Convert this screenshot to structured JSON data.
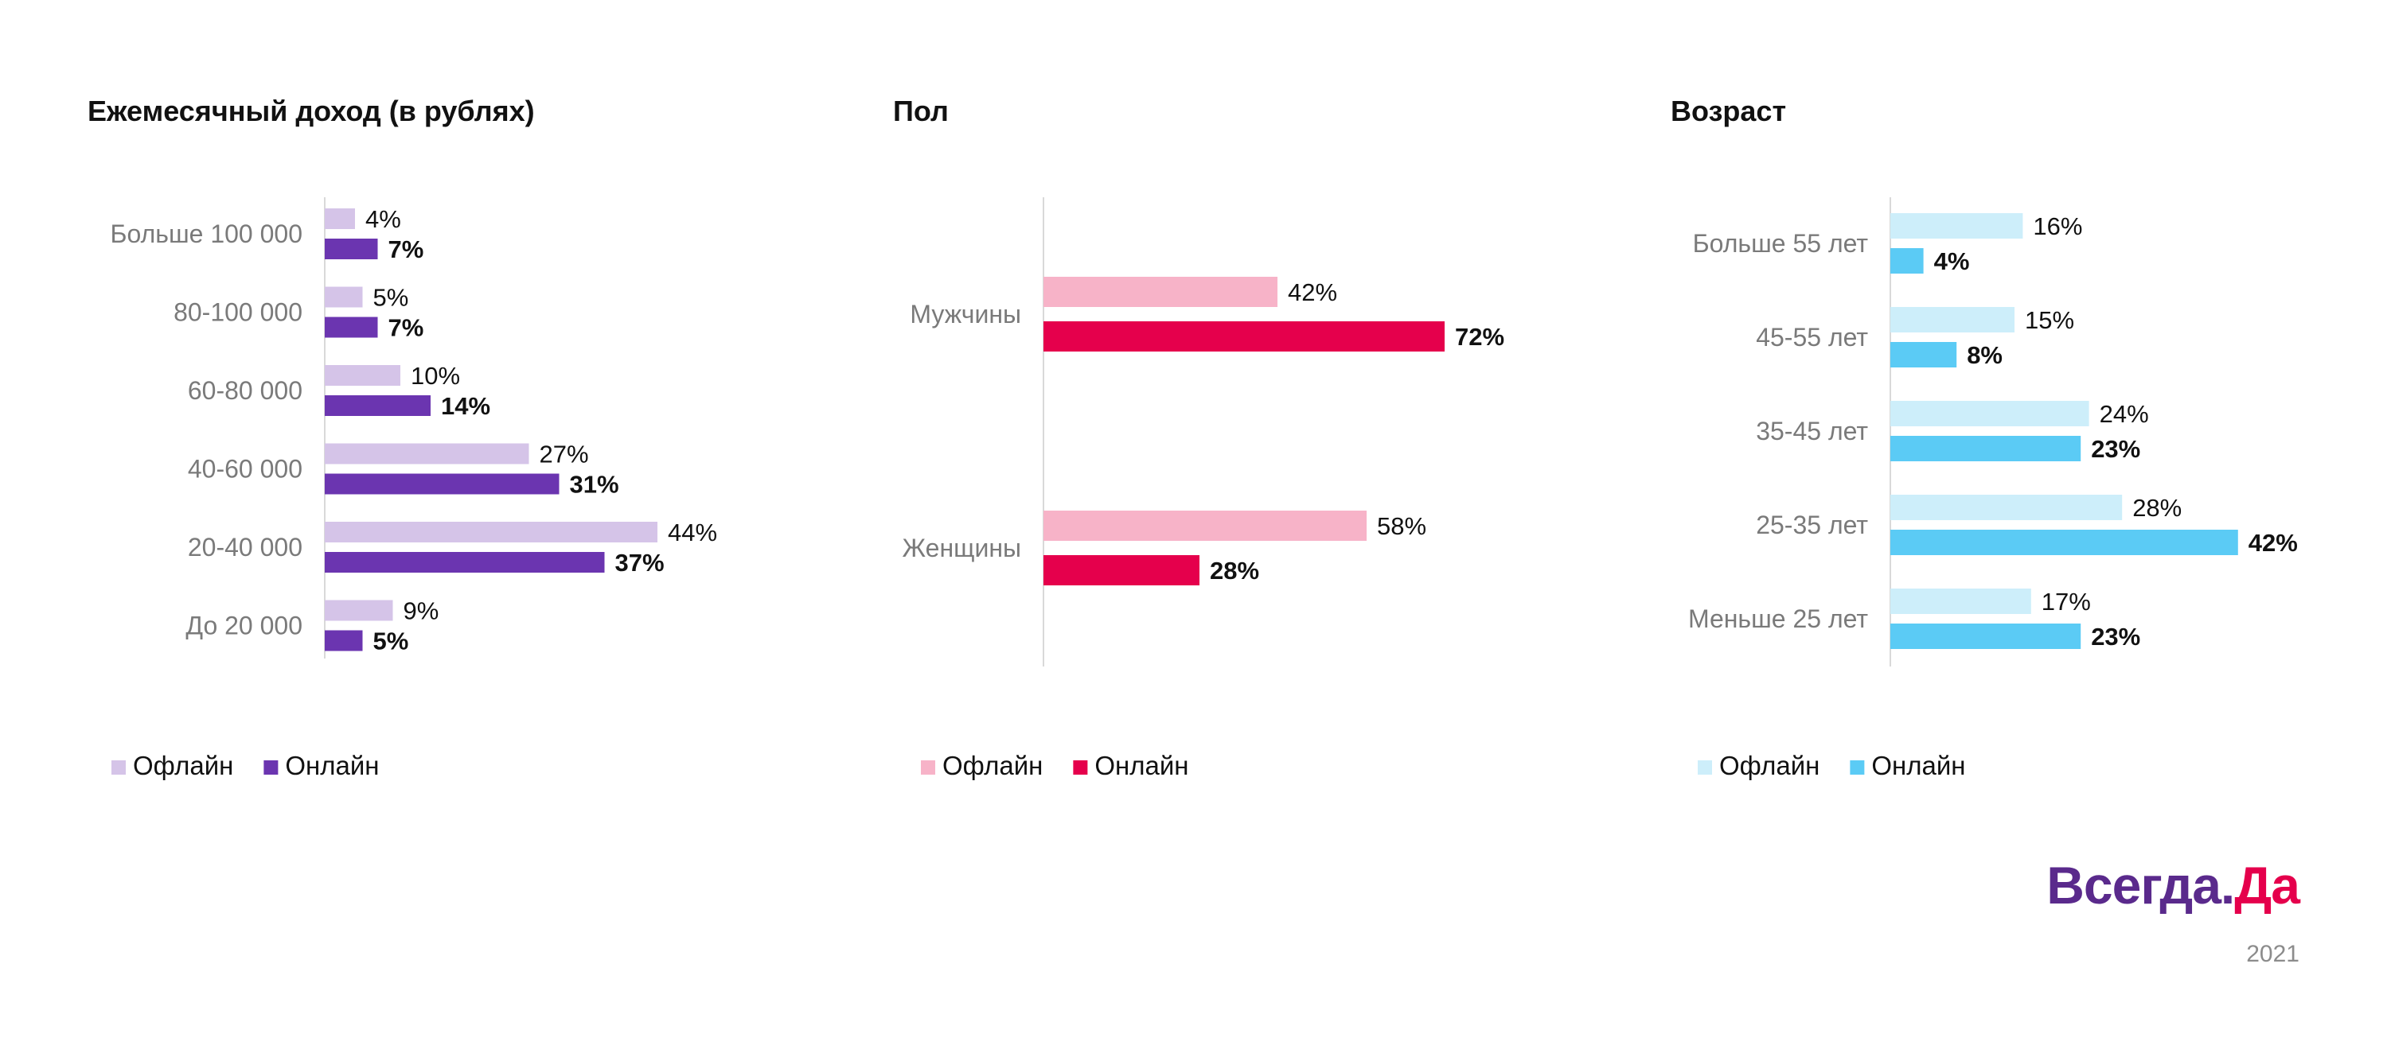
{
  "chart_data": [
    {
      "type": "bar",
      "orientation": "horizontal",
      "title": "Ежемесячный доход (в рублях)",
      "categories": [
        "Больше 100 000",
        "80-100 000",
        "60-80 000",
        "40-60 000",
        "20-40 000",
        "До 20 000"
      ],
      "series": [
        {
          "name": "Офлайн",
          "values": [
            4,
            5,
            10,
            27,
            44,
            9
          ],
          "labels": [
            "4%",
            "5%",
            "10%",
            "27%",
            "44%",
            "9%"
          ],
          "color": "#d5c4e8"
        },
        {
          "name": "Онлайн",
          "values": [
            7,
            7,
            14,
            31,
            37,
            5
          ],
          "labels": [
            "7%",
            "7%",
            "14%",
            "31%",
            "37%",
            "5%"
          ],
          "color": "#6b35b0"
        }
      ],
      "unit": "%",
      "grid": false,
      "legend_position": "bottom-left"
    },
    {
      "type": "bar",
      "orientation": "horizontal",
      "title": "Пол",
      "categories": [
        "Мужчины",
        "Женщины"
      ],
      "series": [
        {
          "name": "Офлайн",
          "values": [
            42,
            58
          ],
          "labels": [
            "42%",
            "58%"
          ],
          "color": "#f7b3c8"
        },
        {
          "name": "Онлайн",
          "values": [
            72,
            28
          ],
          "labels": [
            "72%",
            "28%"
          ],
          "color": "#e5004c"
        }
      ],
      "unit": "%",
      "grid": false,
      "legend_position": "bottom-left"
    },
    {
      "type": "bar",
      "orientation": "horizontal",
      "title": "Возраст",
      "categories": [
        "Больше 55 лет",
        "45-55 лет",
        "35-45 лет",
        "25-35 лет",
        "Меньше 25 лет"
      ],
      "series": [
        {
          "name": "Офлайн",
          "values": [
            16,
            15,
            24,
            28,
            17
          ],
          "labels": [
            "16%",
            "15%",
            "24%",
            "28%",
            "17%"
          ],
          "color": "#cdeefa"
        },
        {
          "name": "Онлайн",
          "values": [
            4,
            8,
            23,
            42,
            23
          ],
          "labels": [
            "4%",
            "8%",
            "23%",
            "42%",
            "23%"
          ],
          "color": "#5bcbf5"
        }
      ],
      "unit": "%",
      "grid": false,
      "legend_position": "bottom-left"
    }
  ],
  "brand": {
    "part1": "Всегда.",
    "part2": "Да"
  },
  "footer": {
    "year": "2021"
  }
}
